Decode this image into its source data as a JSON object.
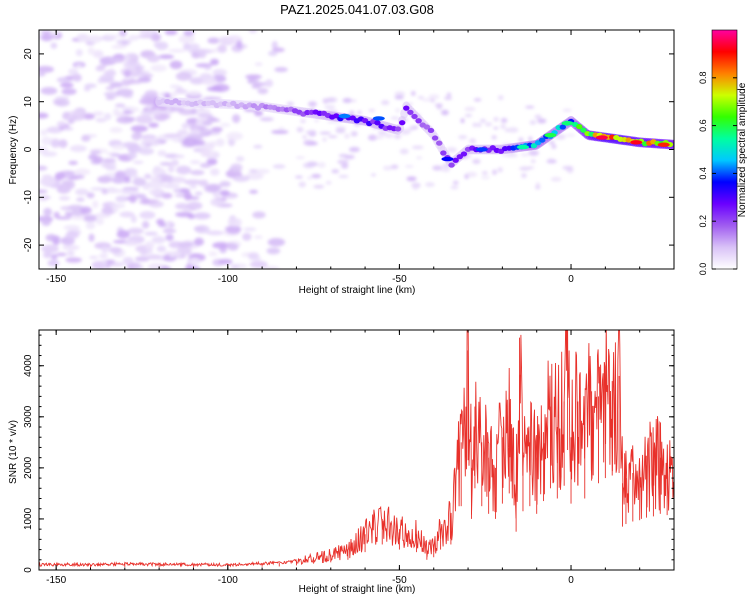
{
  "figure": {
    "title": "PAZ1.2025.041.07.03.G08"
  },
  "chart_data": [
    {
      "type": "heatmap",
      "name": "spectrogram",
      "xlabel": "Height of straight line (km)",
      "ylabel": "Frequency (Hz)",
      "xlim": [
        -155,
        30
      ],
      "ylim": [
        -25,
        25
      ],
      "xticks": [
        -150,
        -100,
        -50,
        0
      ],
      "yticks": [
        -20,
        -10,
        0,
        10,
        20
      ],
      "colorbar": {
        "label": "Normalized spectral amplitude",
        "range": [
          0,
          1
        ],
        "ticks": [
          0.0,
          0.2,
          0.4,
          0.6,
          0.8
        ],
        "tick_labels": [
          "0.0",
          "0.2",
          "0.4",
          "0.6",
          "0.8"
        ],
        "colors": [
          "#ffffff",
          "#d9c2f7",
          "#a05cf0",
          "#6a00ff",
          "#0000ff",
          "#00c8ff",
          "#00ffa0",
          "#33ff00",
          "#ccff00",
          "#ff8000",
          "#ff0000",
          "#ff00a0"
        ]
      },
      "ridge": {
        "x": [
          -120,
          -100,
          -90,
          -80,
          -70,
          -60,
          -50,
          -48,
          -40,
          -35,
          -30,
          -20,
          -10,
          -2,
          0,
          5,
          10,
          20,
          30
        ],
        "freq": [
          10,
          9.5,
          9,
          8,
          7,
          6,
          4,
          9,
          3,
          -3,
          0,
          0,
          1,
          5,
          6,
          3,
          2.5,
          1.5,
          1
        ],
        "amplitude": [
          0.1,
          0.1,
          0.15,
          0.2,
          0.3,
          0.3,
          0.25,
          0.25,
          0.2,
          0.25,
          0.25,
          0.3,
          0.5,
          0.45,
          0.45,
          0.75,
          0.85,
          0.8,
          0.75
        ]
      },
      "noise_region_x": [
        -155,
        -80
      ],
      "noise_region_y": [
        -25,
        25
      ]
    },
    {
      "type": "line",
      "name": "snr",
      "xlabel": "Height of straight line (km)",
      "ylabel": "SNR (10 * v/v)",
      "xlim": [
        -155,
        30
      ],
      "ylim": [
        0,
        4700
      ],
      "xticks": [
        -150,
        -100,
        -50,
        0
      ],
      "yticks": [
        0,
        1000,
        2000,
        3000,
        4000
      ],
      "color": "#e8302a",
      "series": [
        {
          "name": "SNR",
          "x": [
            -155,
            -150,
            -140,
            -130,
            -120,
            -110,
            -100,
            -90,
            -85,
            -80,
            -75,
            -70,
            -65,
            -60,
            -55,
            -50,
            -45,
            -42,
            -40,
            -38,
            -35,
            -32,
            -30,
            -29,
            -28,
            -26,
            -24,
            -22,
            -20,
            -18,
            -16,
            -15,
            -14,
            -12,
            -10,
            -8,
            -6,
            -4,
            -2,
            -1,
            0,
            2,
            4,
            6,
            8,
            10,
            12,
            14,
            15,
            16,
            18,
            20,
            22,
            24,
            26,
            28,
            30
          ],
          "y": [
            100,
            110,
            100,
            120,
            110,
            110,
            100,
            130,
            140,
            180,
            250,
            300,
            400,
            700,
            1000,
            800,
            700,
            400,
            500,
            800,
            1000,
            2500,
            4300,
            2000,
            3200,
            2500,
            2200,
            2000,
            2600,
            3000,
            1500,
            4550,
            2300,
            2500,
            2200,
            2700,
            3200,
            2800,
            3300,
            4700,
            2600,
            3300,
            2800,
            3500,
            3400,
            3600,
            3700,
            3800,
            1700,
            1800,
            1900,
            1950,
            2050,
            2100,
            2200,
            2150,
            2200
          ]
        }
      ]
    }
  ]
}
